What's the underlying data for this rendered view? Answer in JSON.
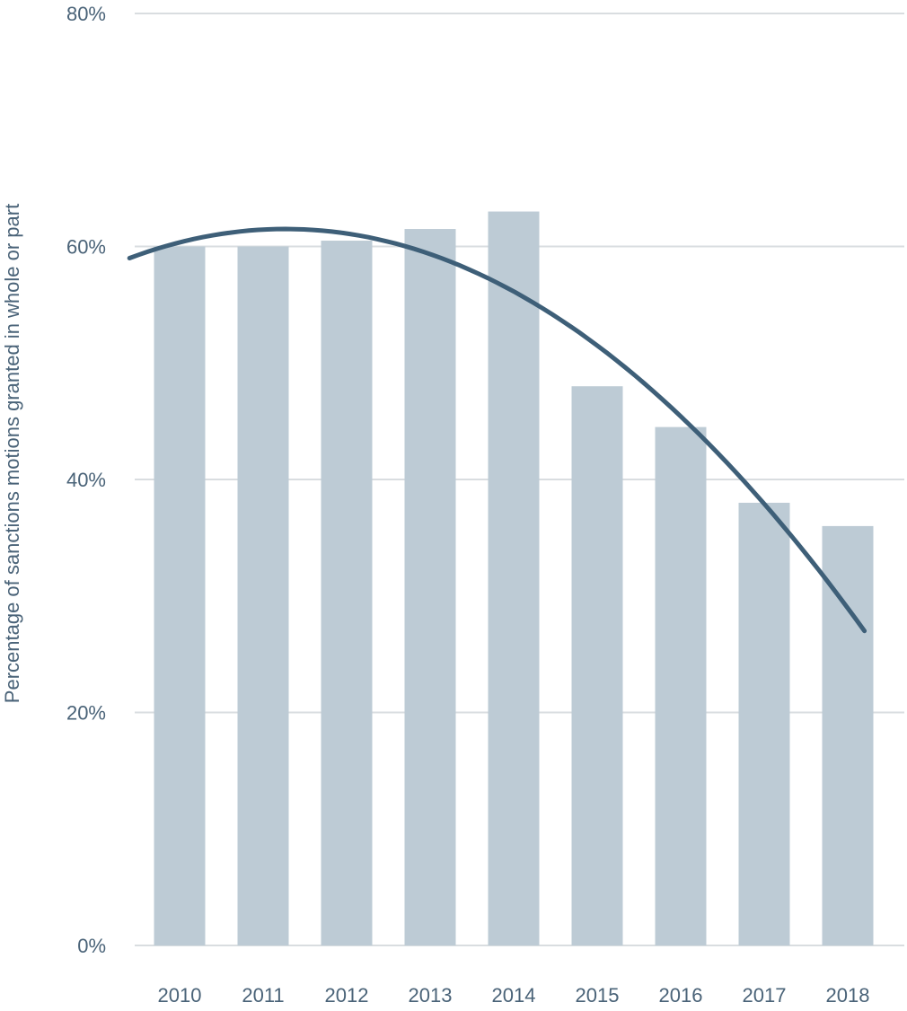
{
  "chart_data": {
    "type": "bar",
    "categories": [
      "2010",
      "2011",
      "2012",
      "2013",
      "2014",
      "2015",
      "2016",
      "2017",
      "2018"
    ],
    "series": [
      {
        "values": [
          60,
          60,
          60.5,
          61.5,
          63,
          48,
          44.5,
          38,
          36
        ]
      }
    ],
    "trendline": {
      "type": "polynomial",
      "degree": 2,
      "x_start": 2009.4,
      "x_end": 2018.2,
      "y_start": 59,
      "y_peak": 61.5,
      "y_end": 27
    },
    "title": "",
    "xlabel": "",
    "ylabel": "Percentage of sanctions motions granted in whole or part",
    "ylim": [
      0,
      80
    ],
    "yticks": [
      "0%",
      "20%",
      "40%",
      "60%",
      "80%"
    ],
    "grid": true,
    "colors": {
      "bar": "#bdcbd5",
      "trend": "#3e5f78",
      "grid": "#d9dde0",
      "text": "#4a6378"
    }
  }
}
